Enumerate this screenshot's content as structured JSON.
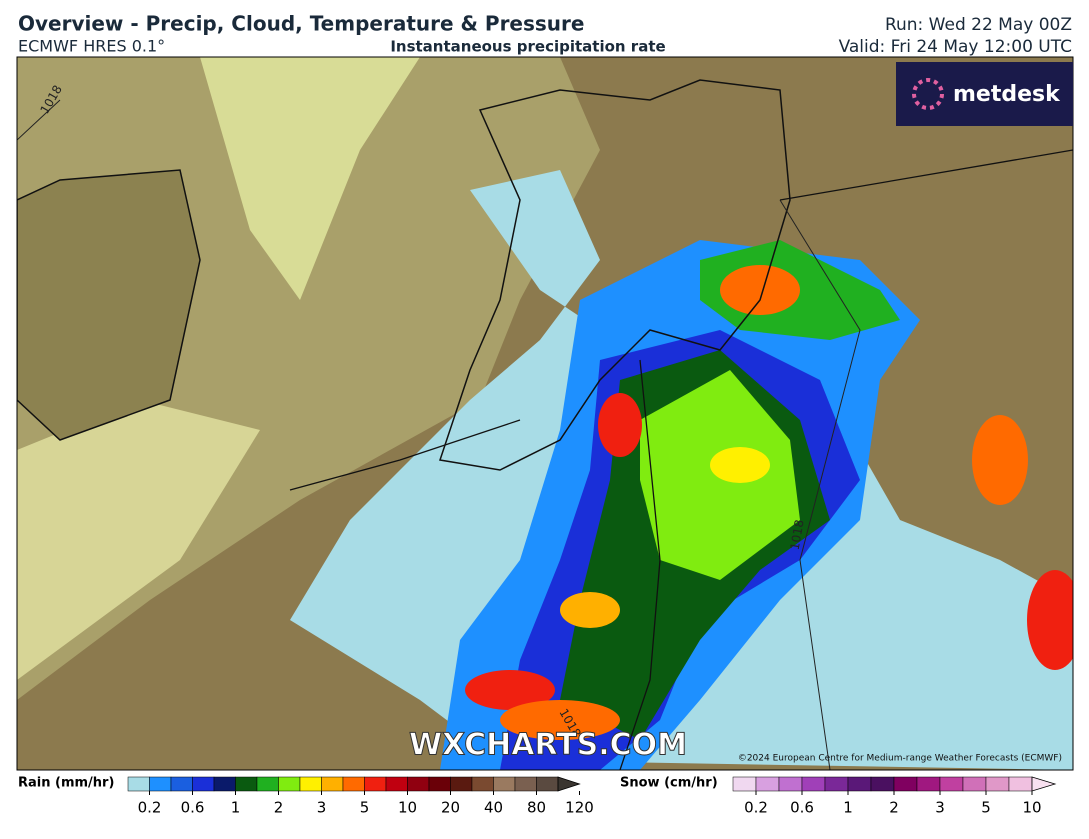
{
  "header": {
    "title": "Overview - Precip, Cloud, Temperature & Pressure",
    "model": "ECMWF HRES 0.1°",
    "subtitle": "Instantaneous precipitation rate",
    "run": "Run: Wed 22 May 00Z",
    "valid": "Valid: Fri 24 May 12:00 UTC"
  },
  "map": {
    "logo": "metdesk",
    "watermark": "WXCHARTS.COM",
    "copyright": "©2024 European Centre for Medium-range Weather Forecasts (ECMWF)",
    "isobars": [
      "1018",
      "1018",
      "1018"
    ]
  },
  "legend": {
    "rain": {
      "label": "Rain (mm/hr)",
      "ticks": [
        "0.2",
        "0.6",
        "1",
        "2",
        "3",
        "5",
        "10",
        "20",
        "40",
        "80",
        "120"
      ],
      "colors": [
        "#a8dce6",
        "#1e90ff",
        "#1a5fe0",
        "#1a2fd8",
        "#0a1a6a",
        "#0a5a10",
        "#20b020",
        "#80ec10",
        "#fff000",
        "#ffb000",
        "#ff6a00",
        "#f02010",
        "#c00010",
        "#900010",
        "#6a0008",
        "#5a1a10",
        "#7a4a30",
        "#9a7a60",
        "#7a6050",
        "#5a4a40",
        "#3a3530"
      ]
    },
    "snow": {
      "label": "Snow (cm/hr)",
      "ticks": [
        "0.2",
        "0.6",
        "1",
        "2",
        "3",
        "5",
        "10"
      ],
      "colors": [
        "#f0d8f0",
        "#d8a0e0",
        "#c070d0",
        "#a040b8",
        "#7a2898",
        "#5a1878",
        "#4a1060",
        "#800060",
        "#a01880",
        "#c040a0",
        "#d070b8",
        "#e098c8",
        "#f0c0e0",
        "#f8e0f0"
      ]
    }
  }
}
